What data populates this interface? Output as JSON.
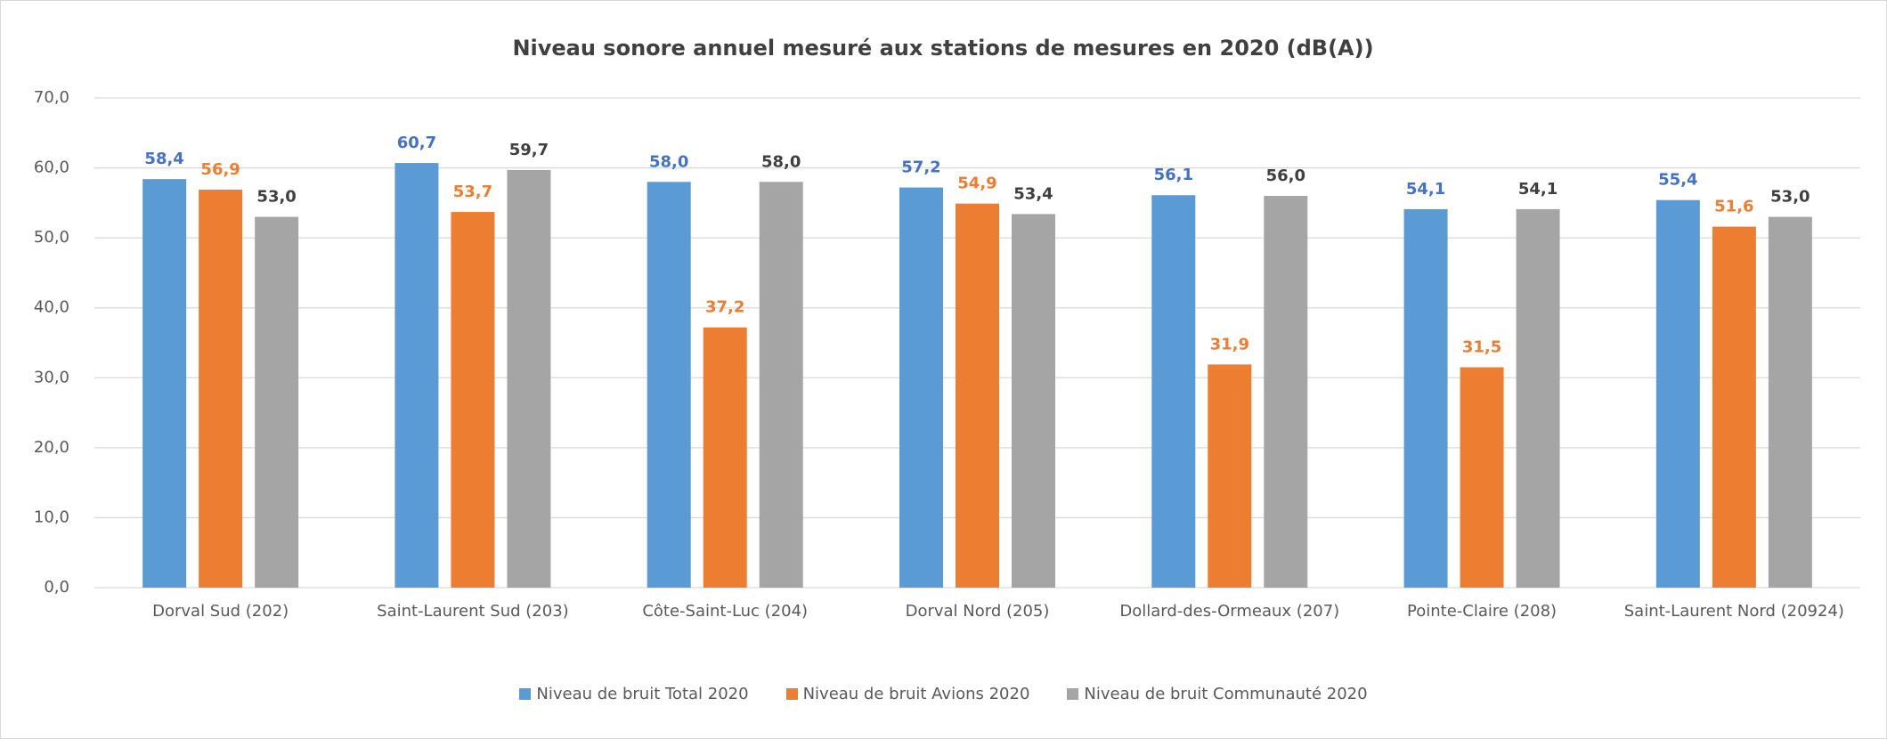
{
  "chart_data": {
    "type": "bar",
    "title": "Niveau sonore annuel mesuré aux stations de mesures en 2020 (dB(A))",
    "categories": [
      "Dorval Sud (202)",
      "Saint-Laurent Sud (203)",
      "Côte-Saint-Luc (204)",
      "Dorval Nord (205)",
      "Dollard-des-Ormeaux (207)",
      "Pointe-Claire (208)",
      "Saint-Laurent Nord (20924)"
    ],
    "series": [
      {
        "name": "Niveau de bruit Total 2020",
        "color": "#5b9bd5",
        "label_color": "#4472c4",
        "values": [
          58.4,
          60.7,
          58.0,
          57.2,
          56.1,
          54.1,
          55.4
        ],
        "value_labels": [
          "58,4",
          "60,7",
          "58,0",
          "57,2",
          "56,1",
          "54,1",
          "55,4"
        ]
      },
      {
        "name": "Niveau de bruit Avions 2020",
        "color": "#ed7d31",
        "label_color": "#ed7d31",
        "values": [
          56.9,
          53.7,
          37.2,
          54.9,
          31.9,
          31.5,
          51.6
        ],
        "value_labels": [
          "56,9",
          "53,7",
          "37,2",
          "54,9",
          "31,9",
          "31,5",
          "51,6"
        ]
      },
      {
        "name": "Niveau de bruit Communauté 2020",
        "color": "#a5a5a5",
        "label_color": "#404040",
        "values": [
          53.0,
          59.7,
          58.0,
          53.4,
          56.0,
          54.1,
          53.0
        ],
        "value_labels": [
          "53,0",
          "59,7",
          "58,0",
          "53,4",
          "56,0",
          "54,1",
          "53,0"
        ]
      }
    ],
    "ylim": [
      0,
      70
    ],
    "yticks": [
      {
        "value": 0,
        "label": "0,0"
      },
      {
        "value": 10,
        "label": "10,0"
      },
      {
        "value": 20,
        "label": "20,0"
      },
      {
        "value": 30,
        "label": "30,0"
      },
      {
        "value": 40,
        "label": "40,0"
      },
      {
        "value": 50,
        "label": "50,0"
      },
      {
        "value": 60,
        "label": "60,0"
      },
      {
        "value": 70,
        "label": "70,0"
      }
    ],
    "grid": true,
    "legend": "bottom"
  }
}
